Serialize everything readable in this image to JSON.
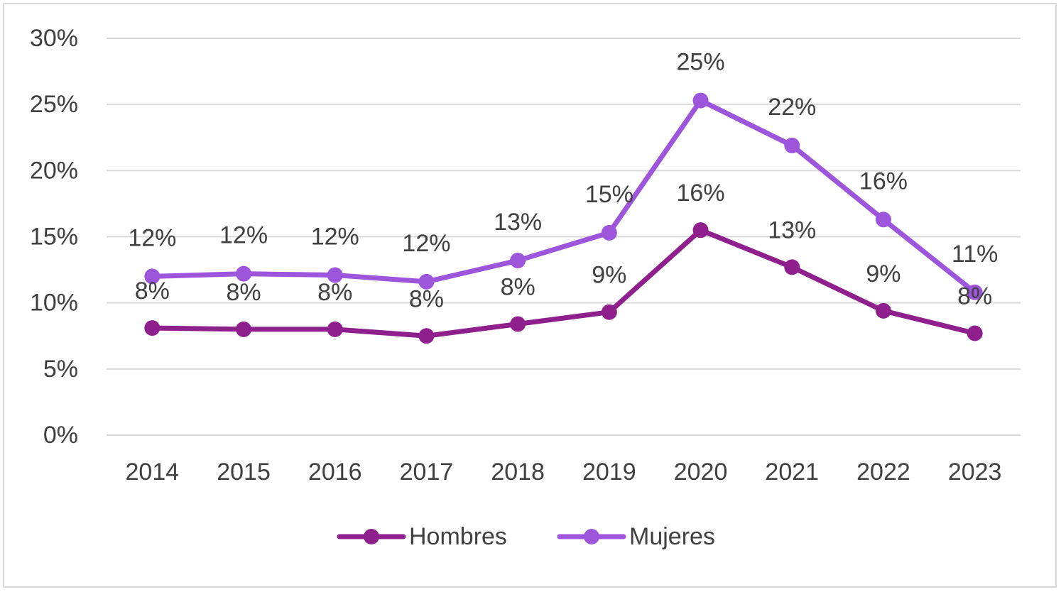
{
  "chart_data": {
    "type": "line",
    "title": "",
    "xlabel": "",
    "ylabel": "",
    "categories": [
      "2014",
      "2015",
      "2016",
      "2017",
      "2018",
      "2019",
      "2020",
      "2021",
      "2022",
      "2023"
    ],
    "ylim": [
      0,
      30
    ],
    "y_ticks": [
      "0%",
      "5%",
      "10%",
      "15%",
      "20%",
      "25%",
      "30%"
    ],
    "y_tick_values": [
      0,
      5,
      10,
      15,
      20,
      25,
      30
    ],
    "grid": true,
    "legend_position": "bottom",
    "series": [
      {
        "name": "Hombres",
        "color": "#8e1f8c",
        "values": [
          8.1,
          8.0,
          8.0,
          7.5,
          8.4,
          9.3,
          15.5,
          12.7,
          9.4,
          7.7
        ],
        "labels": [
          "8%",
          "8%",
          "8%",
          "8%",
          "8%",
          "9%",
          "16%",
          "13%",
          "9%",
          "8%"
        ]
      },
      {
        "name": "Mujeres",
        "color": "#9d55dc",
        "values": [
          12.0,
          12.2,
          12.1,
          11.6,
          13.2,
          15.3,
          25.3,
          21.9,
          16.3,
          10.8
        ],
        "labels": [
          "12%",
          "12%",
          "12%",
          "12%",
          "13%",
          "15%",
          "25%",
          "22%",
          "16%",
          "11%"
        ]
      }
    ]
  }
}
